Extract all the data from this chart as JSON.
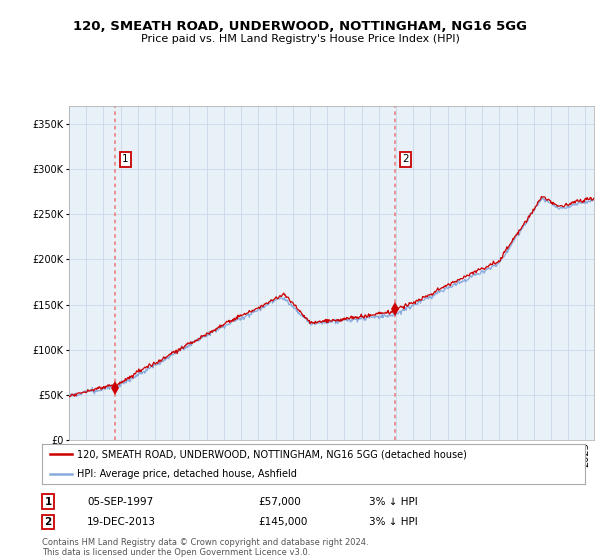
{
  "title": "120, SMEATH ROAD, UNDERWOOD, NOTTINGHAM, NG16 5GG",
  "subtitle": "Price paid vs. HM Land Registry's House Price Index (HPI)",
  "sale1_label": "05-SEP-1997",
  "sale1_price": 57000,
  "sale1_t": 1997.69,
  "sale1_hpi_pct": "3% ↓ HPI",
  "sale2_label": "19-DEC-2013",
  "sale2_price": 145000,
  "sale2_t": 2013.96,
  "sale2_hpi_pct": "3% ↓ HPI",
  "legend_property": "120, SMEATH ROAD, UNDERWOOD, NOTTINGHAM, NG16 5GG (detached house)",
  "legend_hpi": "HPI: Average price, detached house, Ashfield",
  "footer": "Contains HM Land Registry data © Crown copyright and database right 2024.\nThis data is licensed under the Open Government Licence v3.0.",
  "property_color": "#cc0000",
  "hpi_color": "#88aadd",
  "vline_color": "#ee8888",
  "bg_plot": "#e8f0f8",
  "background_color": "#ffffff",
  "grid_color": "#c8d8e8",
  "ylim": [
    0,
    370000
  ],
  "yticks": [
    0,
    50000,
    100000,
    150000,
    200000,
    250000,
    300000,
    350000
  ],
  "xlim_start": 1995.0,
  "xlim_end": 2025.5
}
